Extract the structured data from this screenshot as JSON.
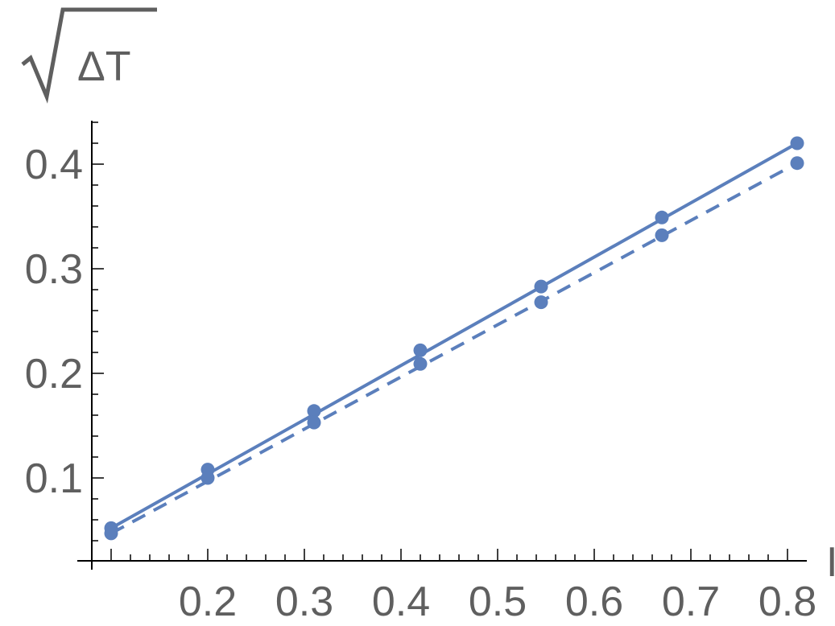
{
  "chart_data": {
    "type": "scatter",
    "xlabel": "I",
    "ylabel": "ΔT",
    "ylabel_sqrt": true,
    "xlim": [
      0.08,
      0.82
    ],
    "ylim": [
      0.02,
      0.44
    ],
    "xticks": [
      0.2,
      0.3,
      0.4,
      0.5,
      0.6,
      0.7,
      0.8
    ],
    "xtick_labels": [
      "0.2",
      "0.3",
      "0.4",
      "0.5",
      "0.6",
      "0.7",
      "0.8"
    ],
    "yticks": [
      0.1,
      0.2,
      0.3,
      0.4
    ],
    "ytick_labels": [
      "0.1",
      "0.2",
      "0.3",
      "0.4"
    ],
    "grid": false,
    "color": "#5b7fbc",
    "series": [
      {
        "style": "solid",
        "points": [
          {
            "x": 0.1,
            "y": 0.052
          },
          {
            "x": 0.2,
            "y": 0.108
          },
          {
            "x": 0.31,
            "y": 0.164
          },
          {
            "x": 0.42,
            "y": 0.222
          },
          {
            "x": 0.545,
            "y": 0.283
          },
          {
            "x": 0.67,
            "y": 0.349
          },
          {
            "x": 0.81,
            "y": 0.42
          }
        ]
      },
      {
        "style": "dashed",
        "points": [
          {
            "x": 0.1,
            "y": 0.047
          },
          {
            "x": 0.2,
            "y": 0.1
          },
          {
            "x": 0.31,
            "y": 0.153
          },
          {
            "x": 0.42,
            "y": 0.209
          },
          {
            "x": 0.545,
            "y": 0.268
          },
          {
            "x": 0.67,
            "y": 0.332
          },
          {
            "x": 0.81,
            "y": 0.401
          }
        ]
      }
    ]
  }
}
